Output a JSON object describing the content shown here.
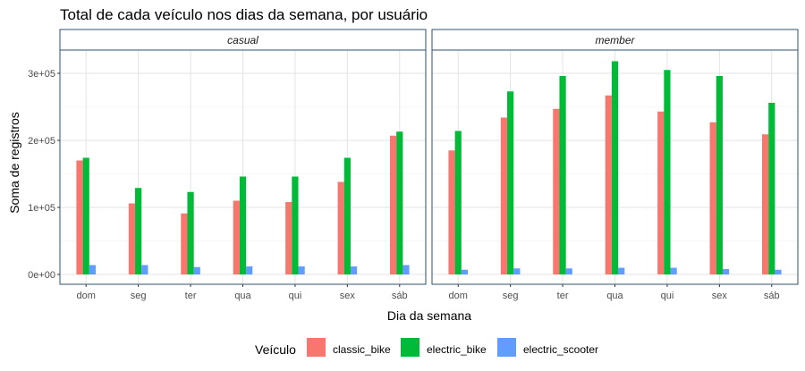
{
  "chart_data": {
    "type": "bar",
    "title": "Total de cada veículo nos dias da semana, por usuário",
    "xlabel": "Dia da semana",
    "ylabel": "Soma de registros",
    "categories": [
      "dom",
      "seg",
      "ter",
      "qua",
      "qui",
      "sex",
      "sáb"
    ],
    "ylim": [
      0,
      330000
    ],
    "yticks": [
      0,
      100000,
      200000,
      300000
    ],
    "ytick_labels": [
      "0e+00",
      "1e+05",
      "2e+05",
      "3e+05"
    ],
    "grid": true,
    "legend": {
      "title": "Veículo",
      "position": "bottom",
      "entries": [
        "classic_bike",
        "electric_bike",
        "electric_scooter"
      ]
    },
    "colors": [
      "#F8766D",
      "#00BA38",
      "#619CFF"
    ],
    "panels": [
      {
        "name": "casual",
        "series": [
          {
            "name": "classic_bike",
            "values": [
              170000,
              106000,
              91000,
              110000,
              108000,
              138000,
              207000
            ]
          },
          {
            "name": "electric_bike",
            "values": [
              174000,
              129000,
              123000,
              146000,
              146000,
              174000,
              213000
            ]
          },
          {
            "name": "electric_scooter",
            "values": [
              14000,
              14000,
              11000,
              12000,
              12000,
              12000,
              14000
            ]
          }
        ]
      },
      {
        "name": "member",
        "series": [
          {
            "name": "classic_bike",
            "values": [
              185000,
              234000,
              247000,
              267000,
              243000,
              227000,
              209000
            ]
          },
          {
            "name": "electric_bike",
            "values": [
              214000,
              273000,
              296000,
              318000,
              305000,
              296000,
              256000
            ]
          },
          {
            "name": "electric_scooter",
            "values": [
              7000,
              9000,
              9000,
              10000,
              10000,
              8000,
              7000
            ]
          }
        ]
      }
    ]
  }
}
